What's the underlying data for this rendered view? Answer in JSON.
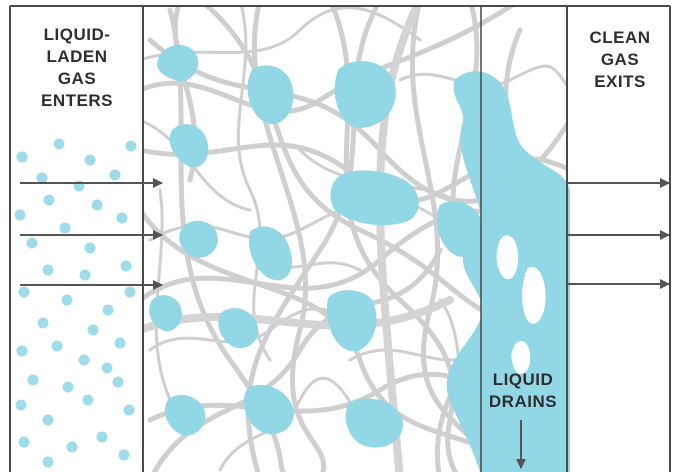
{
  "labels": {
    "inlet": [
      "LIQUID-",
      "LADEN",
      "GAS",
      "ENTERS"
    ],
    "outlet": [
      "CLEAN",
      "GAS",
      "EXITS"
    ],
    "drain": [
      "LIQUID",
      "DRAINS"
    ]
  },
  "colors": {
    "fiber": "#cfcfcf",
    "liquid": "#91d7e6",
    "droplet": "#9fdcea",
    "border": "#4a4a4a",
    "arrow": "#555555",
    "text": "#2e2e2e"
  },
  "icons": {
    "flow_arrow": "arrow-right-icon",
    "drain_arrow": "arrow-down-icon"
  }
}
